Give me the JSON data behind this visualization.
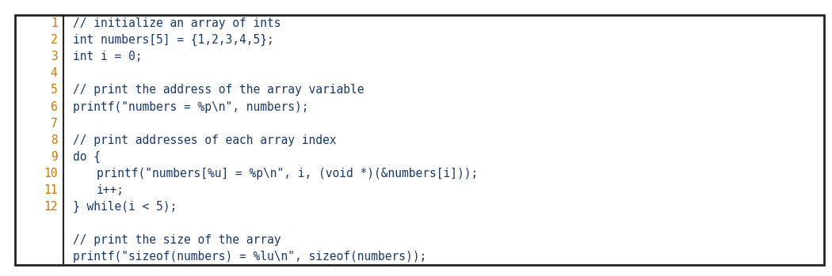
{
  "bg_color": "#ffffff",
  "border_color": "#222222",
  "line_num_color": "#cc7700",
  "code_color": "#1a3a6a",
  "comment_color": "#1a3a6a",
  "font_size": 10.5,
  "lines": [
    {
      "num": "1",
      "indent": 0,
      "text": "// initialize an array of ints",
      "comment": true
    },
    {
      "num": "2",
      "indent": 0,
      "text": "int numbers[5] = {1,2,3,4,5};",
      "comment": false
    },
    {
      "num": "3",
      "indent": 0,
      "text": "int i = 0;",
      "comment": false
    },
    {
      "num": "4",
      "indent": 0,
      "text": "",
      "comment": false
    },
    {
      "num": "5",
      "indent": 0,
      "text": "// print the address of the array variable",
      "comment": true
    },
    {
      "num": "6",
      "indent": 0,
      "text": "printf(\"numbers = %p\\n\", numbers);",
      "comment": false
    },
    {
      "num": "7",
      "indent": 0,
      "text": "",
      "comment": false
    },
    {
      "num": "8",
      "indent": 0,
      "text": "// print addresses of each array index",
      "comment": true
    },
    {
      "num": "9",
      "indent": 0,
      "text": "do {",
      "comment": false
    },
    {
      "num": "10",
      "indent": 1,
      "text": "printf(\"numbers[%u] = %p\\n\", i, (void *)(&numbers[i]));",
      "comment": false
    },
    {
      "num": "11",
      "indent": 1,
      "text": "i++;",
      "comment": false
    },
    {
      "num": "12",
      "indent": 0,
      "text": "} while(i < 5);",
      "comment": false
    },
    {
      "num": "",
      "indent": 0,
      "text": "",
      "comment": false
    },
    {
      "num": "",
      "indent": 0,
      "text": "// print the size of the array",
      "comment": true
    },
    {
      "num": "",
      "indent": 0,
      "text": "printf(\"sizeof(numbers) = %lu\\n\", sizeof(numbers));",
      "comment": false
    }
  ],
  "figwidth": 10.5,
  "figheight": 3.49,
  "dpi": 100
}
